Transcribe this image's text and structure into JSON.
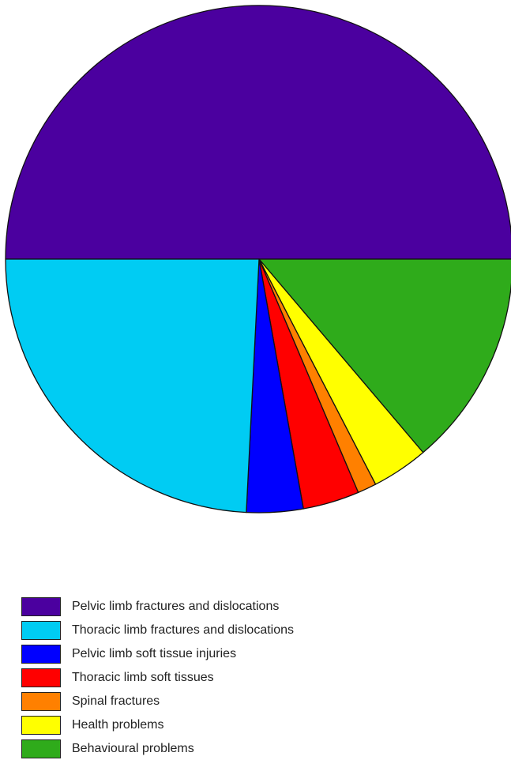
{
  "chart_data": {
    "type": "pie",
    "title": "",
    "slices": [
      {
        "label": "Pelvic limb fractures and dislocations",
        "value": 50.0,
        "color": "#4b009f"
      },
      {
        "label": "Behavioural problems",
        "value": 13.8,
        "color": "#2fab1b"
      },
      {
        "label": "Health problems",
        "value": 3.6,
        "color": "#ffff00"
      },
      {
        "label": "Spinal fractures",
        "value": 1.2,
        "color": "#ff8000"
      },
      {
        "label": "Thoracic limb soft tissues",
        "value": 3.6,
        "color": "#ff0000"
      },
      {
        "label": "Pelvic limb soft tissue injuries",
        "value": 3.6,
        "color": "#0000ff"
      },
      {
        "label": "Thoracic limb fractures and dislocations",
        "value": 24.2,
        "color": "#00ccf3"
      }
    ],
    "legend": {
      "placement": "bottom-left",
      "entries": [
        {
          "label": "Pelvic limb fractures and dislocations",
          "color": "#4b009f"
        },
        {
          "label": "Thoracic limb fractures and dislocations",
          "color": "#00ccf3"
        },
        {
          "label": "Pelvic limb soft tissue injuries",
          "color": "#0000ff"
        },
        {
          "label": "Thoracic limb soft tissues",
          "color": "#ff0000"
        },
        {
          "label": "Spinal fractures",
          "color": "#ff8000"
        },
        {
          "label": "Health problems",
          "color": "#ffff00"
        },
        {
          "label": "Behavioural problems",
          "color": "#2fab1b"
        }
      ]
    }
  }
}
